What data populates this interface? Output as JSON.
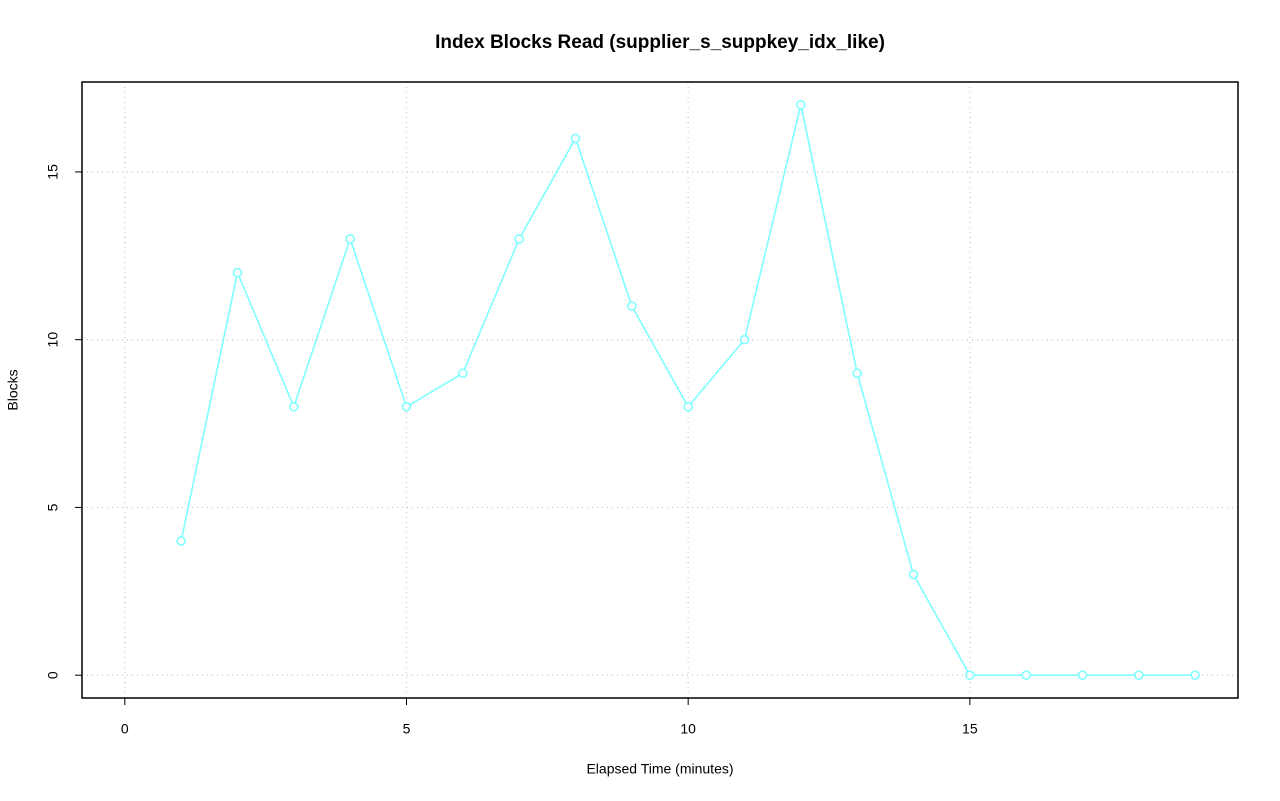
{
  "chart_data": {
    "type": "line",
    "title": "Index Blocks Read (supplier_s_suppkey_idx_like)",
    "x_label": "Elapsed Time (minutes)",
    "y_label": "Blocks",
    "x": [
      1,
      2,
      3,
      4,
      5,
      6,
      7,
      8,
      9,
      10,
      11,
      12,
      13,
      14,
      15,
      16,
      17,
      18,
      19
    ],
    "series": [
      {
        "color": "#80ffff",
        "values": [
          4,
          12,
          8,
          13,
          8,
          9,
          13,
          16,
          11,
          8,
          10,
          17,
          9,
          3,
          0,
          0,
          0,
          0,
          0
        ]
      }
    ],
    "xlim": [
      -0.76,
      19.76
    ],
    "ylim": [
      -0.68,
      17.68
    ],
    "xticks": [
      0,
      5,
      10,
      15
    ],
    "yticks": [
      0,
      5,
      10,
      15
    ],
    "grid": true
  }
}
